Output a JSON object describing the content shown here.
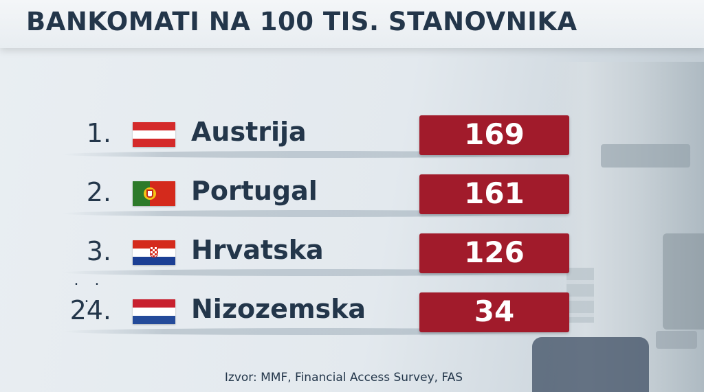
{
  "title": "BANKOMATI NA 100 TIS. STANOVNIKA",
  "ellipsis": ". . .",
  "source": "Izvor: MMF, Financial Access Survey, FAS",
  "colors": {
    "text": "#23364a",
    "value_box": "#a11b2b",
    "value_text": "#ffffff"
  },
  "rows": [
    {
      "rank": "1.",
      "country": "Austrija",
      "value": "169",
      "flag_icon": "austria-flag-icon"
    },
    {
      "rank": "2.",
      "country": "Portugal",
      "value": "161",
      "flag_icon": "portugal-flag-icon"
    },
    {
      "rank": "3.",
      "country": "Hrvatska",
      "value": "126",
      "flag_icon": "croatia-flag-icon"
    },
    {
      "rank": "24.",
      "country": "Nizozemska",
      "value": "34",
      "flag_icon": "netherlands-flag-icon"
    }
  ]
}
